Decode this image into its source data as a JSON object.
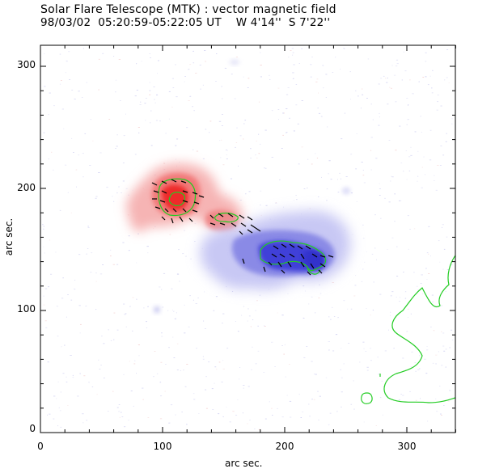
{
  "header": {
    "title": "Solar Flare Telescope (MTK) : vector magnetic field",
    "date_time": "98/03/02  05:20:59-05:22:05 UT",
    "position": "W 4'14''  S 7'22''"
  },
  "axes": {
    "xlabel": "arc sec.",
    "ylabel": "arc sec.",
    "xlim": [
      0,
      340
    ],
    "ylim": [
      0,
      320
    ],
    "xticks": [
      "0",
      "100",
      "200",
      "300"
    ],
    "yticks": [
      "0",
      "100",
      "200",
      "300"
    ]
  },
  "colors": {
    "positive_polarity": "#f03030",
    "negative_polarity": "#3a3ad8",
    "contour": "#22cc22",
    "vectors": "#000000",
    "noise": "#b8b8ec"
  }
}
